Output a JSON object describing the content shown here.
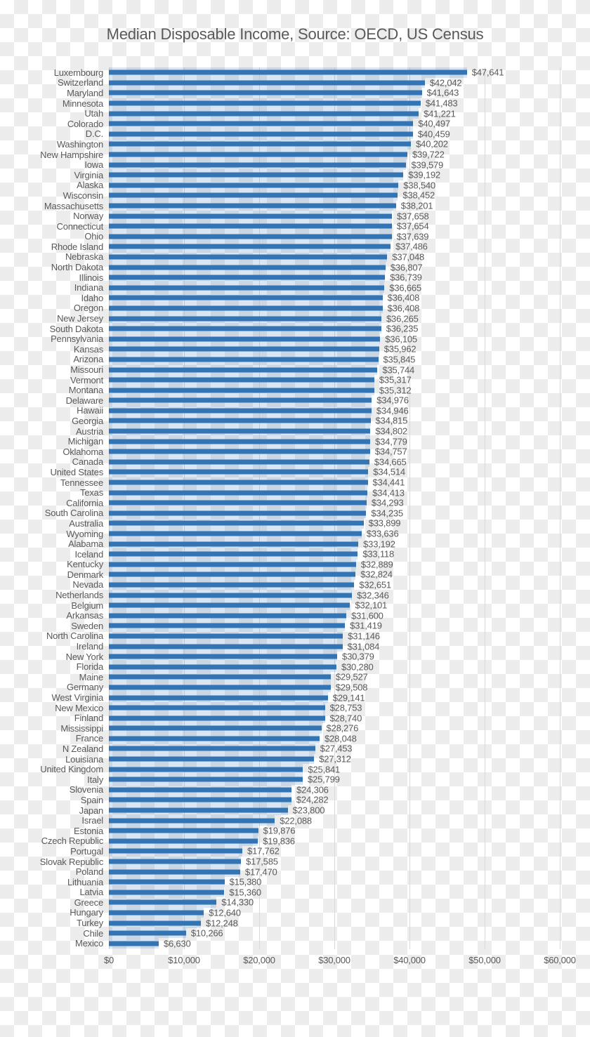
{
  "chart_data": {
    "type": "bar",
    "orientation": "horizontal",
    "title": "Median Disposable Income, Source: OECD, US Census",
    "xlabel": "",
    "ylabel": "",
    "xlim": [
      0,
      60000
    ],
    "x_ticks": [
      0,
      10000,
      20000,
      30000,
      40000,
      50000,
      60000
    ],
    "x_tick_labels": [
      "$0",
      "$10,000",
      "$20,000",
      "$30,000",
      "$40,000",
      "$50,000",
      "$60,000"
    ],
    "grid": "vertical-gridlines-on",
    "legend": "none",
    "categories": [
      "Luxembourg",
      "Switzerland",
      "Maryland",
      "Minnesota",
      "Utah",
      "Colorado",
      "D.C.",
      "Washington",
      "New Hampshire",
      "Iowa",
      "Virginia",
      "Alaska",
      "Wisconsin",
      "Massachusetts",
      "Norway",
      "Connecticut",
      "Ohio",
      "Rhode Island",
      "Nebraska",
      "North Dakota",
      "Illinois",
      "Indiana",
      "Idaho",
      "Oregon",
      "New Jersey",
      "South Dakota",
      "Pennsylvania",
      "Kansas",
      "Arizona",
      "Missouri",
      "Vermont",
      "Montana",
      "Delaware",
      "Hawaii",
      "Georgia",
      "Austria",
      "Michigan",
      "Oklahoma",
      "Canada",
      "United States",
      "Tennessee",
      "Texas",
      "California",
      "South Carolina",
      "Australia",
      "Wyoming",
      "Alabama",
      "Iceland",
      "Kentucky",
      "Denmark",
      "Nevada",
      "Netherlands",
      "Belgium",
      "Arkansas",
      "Sweden",
      "North Carolina",
      "Ireland",
      "New York",
      "Florida",
      "Maine",
      "Germany",
      "West Virginia",
      "New Mexico",
      "Finland",
      "Mississippi",
      "France",
      "N Zealand",
      "Louisiana",
      "United Kingdom",
      "Italy",
      "Slovenia",
      "Spain",
      "Japan",
      "Israel",
      "Estonia",
      "Czech Republic",
      "Portugal",
      "Slovak Republic",
      "Poland",
      "Lithuania",
      "Latvia",
      "Greece",
      "Hungary",
      "Turkey",
      "Chile",
      "Mexico"
    ],
    "values": [
      47641,
      42042,
      41643,
      41483,
      41221,
      40497,
      40459,
      40202,
      39722,
      39579,
      39192,
      38540,
      38452,
      38201,
      37658,
      37654,
      37639,
      37486,
      37048,
      36807,
      36739,
      36665,
      36408,
      36408,
      36265,
      36235,
      36105,
      35962,
      35845,
      35744,
      35317,
      35312,
      34976,
      34946,
      34815,
      34802,
      34779,
      34757,
      34665,
      34514,
      34441,
      34413,
      34293,
      34235,
      33899,
      33636,
      33192,
      33118,
      32889,
      32824,
      32651,
      32346,
      32101,
      31600,
      31419,
      31146,
      31084,
      30379,
      30280,
      29527,
      29508,
      29141,
      28753,
      28740,
      28276,
      28048,
      27453,
      27312,
      25841,
      25799,
      24306,
      24282,
      23800,
      22088,
      19876,
      19836,
      17762,
      17585,
      17470,
      15380,
      15360,
      14330,
      12640,
      12248,
      10266,
      6630
    ],
    "value_labels": [
      "$47,641",
      "$42,042",
      "$41,643",
      "$41,483",
      "$41,221",
      "$40,497",
      "$40,459",
      "$40,202",
      "$39,722",
      "$39,579",
      "$39,192",
      "$38,540",
      "$38,452",
      "$38,201",
      "$37,658",
      "$37,654",
      "$37,639",
      "$37,486",
      "$37,048",
      "$36,807",
      "$36,739",
      "$36,665",
      "$36,408",
      "$36,408",
      "$36,265",
      "$36,235",
      "$36,105",
      "$35,962",
      "$35,845",
      "$35,744",
      "$35,317",
      "$35,312",
      "$34,976",
      "$34,946",
      "$34,815",
      "$34,802",
      "$34,779",
      "$34,757",
      "$34,665",
      "$34,514",
      "$34,441",
      "$34,413",
      "$34,293",
      "$34,235",
      "$33,899",
      "$33,636",
      "$33,192",
      "$33,118",
      "$32,889",
      "$32,824",
      "$32,651",
      "$32,346",
      "$32,101",
      "$31,600",
      "$31,419",
      "$31,146",
      "$31,084",
      "$30,379",
      "$30,280",
      "$29,527",
      "$29,508",
      "$29,141",
      "$28,753",
      "$28,740",
      "$28,276",
      "$28,048",
      "$27,453",
      "$27,312",
      "$25,841",
      "$25,799",
      "$24,306",
      "$24,282",
      "$23,800",
      "$22,088",
      "$19,876",
      "$19,836",
      "$17,762",
      "$17,585",
      "$17,470",
      "$15,380",
      "$15,360",
      "$14,330",
      "$12,640",
      "$12,248",
      "$10,266",
      "$6,630"
    ]
  },
  "colors": {
    "bar": "#3274B4",
    "bar_halo": "rgba(51,116,180,0.18)",
    "gridline": "#D9D9D9",
    "text": "#595959",
    "checker_light": "#FFFFFF",
    "checker_dark": "#ECECEC"
  }
}
